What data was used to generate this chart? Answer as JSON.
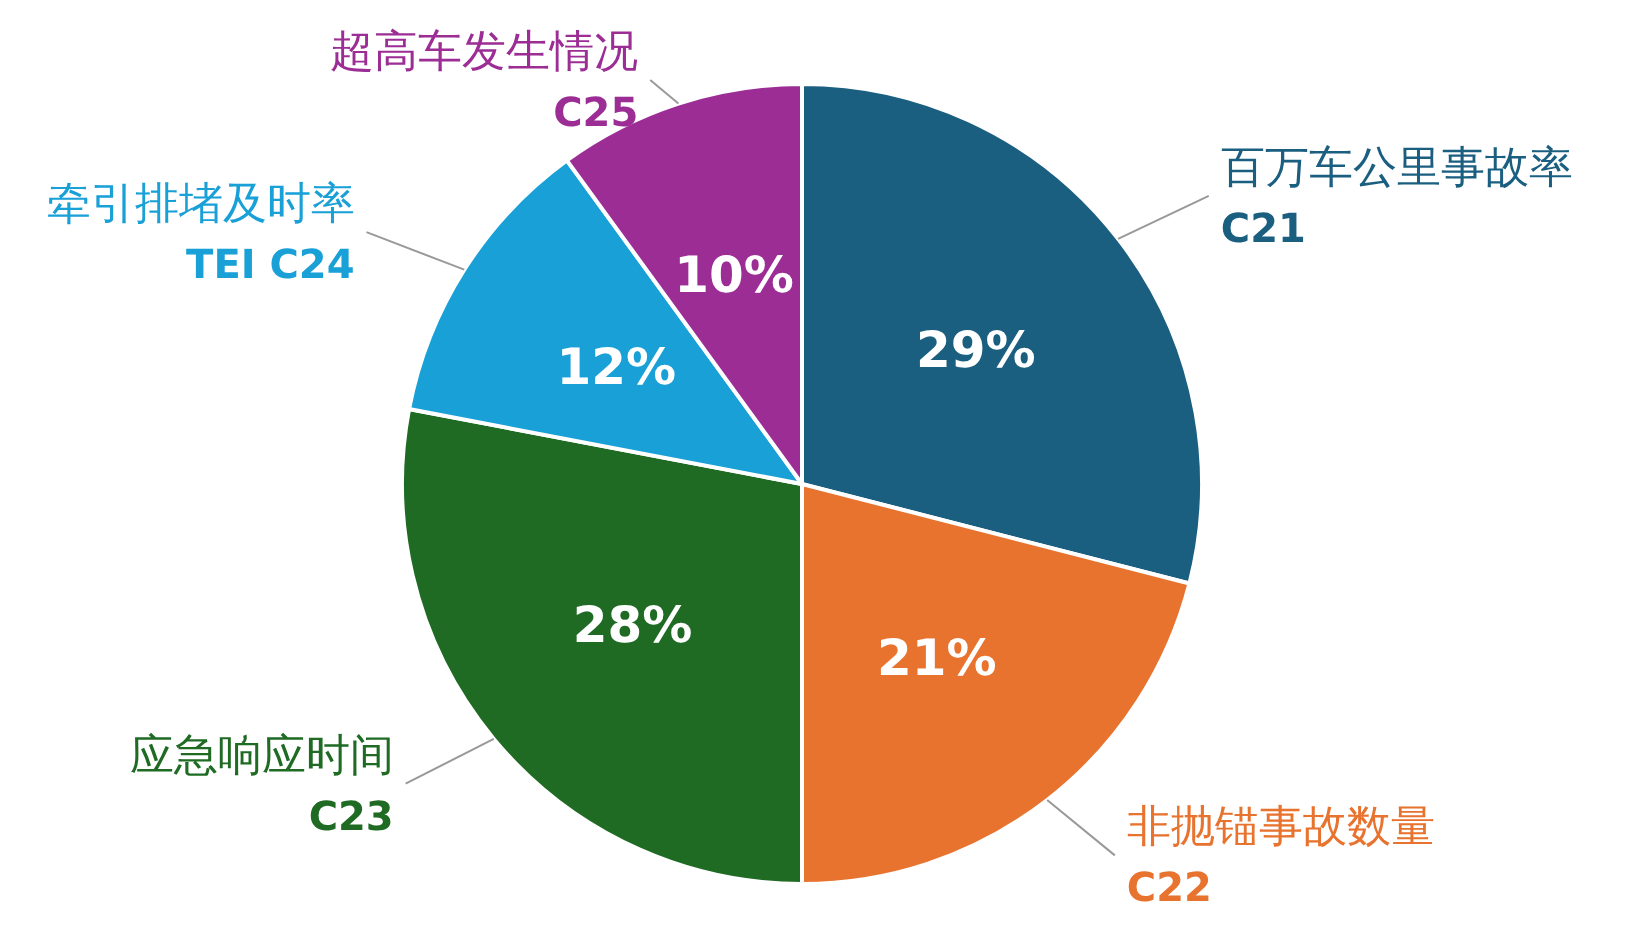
{
  "chart_data": {
    "type": "pie",
    "categories": [
      "百万车公里事故率\nC21",
      "非抛锚事故数量\nC22",
      "应急响应时间\nC23",
      "牵引排堵及时率\nTEI C24",
      "超高车发生情况\nC25"
    ],
    "values": [
      29,
      21,
      28,
      12,
      10
    ],
    "value_labels": [
      "29%",
      "21%",
      "28%",
      "12%",
      "10%"
    ],
    "colors": [
      "#1a5e80",
      "#e8732f",
      "#1f6b24",
      "#18a0d7",
      "#9b2d95"
    ]
  }
}
